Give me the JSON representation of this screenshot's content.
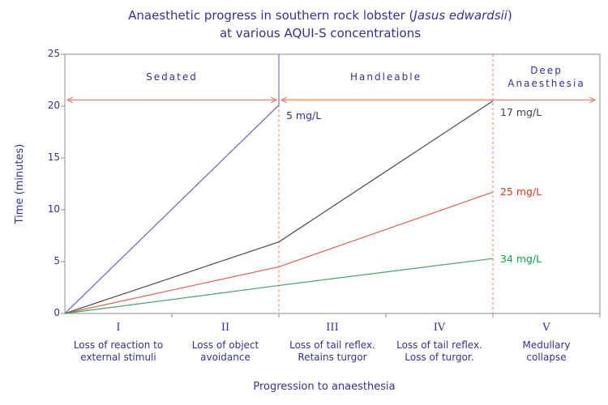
{
  "title": {
    "line1_prefix": "Anaesthetic progress in southern rock lobster (",
    "line1_italic": "Jasus edwardsii",
    "line1_suffix": ")",
    "line2": "at various AQUI-S concentrations"
  },
  "colors": {
    "text": "#32329a",
    "axis": "#8e8e8e",
    "arrow": "#ee7058",
    "arrow_highlight": "#f6ac92",
    "divider_dashed": "#f0745c",
    "divider_solid": "#5858b4"
  },
  "chart_data": {
    "type": "line",
    "title": "Anaesthetic progress in southern rock lobster (Jasus edwardsii) at various AQUI-S concentrations",
    "xlabel": "Progression to anaesthesia",
    "ylabel": "Time (minutes)",
    "ylim": [
      0,
      25
    ],
    "yticks": [
      0,
      5,
      10,
      15,
      20,
      25
    ],
    "grid": false,
    "legend_position": "inline-right-of-lines",
    "x_axis_note": "x positions are stage-boundary indices 0..5 (start of stage I to end of stage V)",
    "stages": [
      {
        "numeral": "I",
        "desc": [
          "Loss of reaction to",
          "external stimuli"
        ]
      },
      {
        "numeral": "II",
        "desc": [
          "Loss of object",
          "avoidance"
        ]
      },
      {
        "numeral": "III",
        "desc": [
          "Loss of tail reflex.",
          "Retains turgor"
        ]
      },
      {
        "numeral": "IV",
        "desc": [
          "Loss of tail reflex.",
          "Loss of turgor."
        ]
      },
      {
        "numeral": "V",
        "desc": [
          "Medullary",
          "collapse"
        ]
      }
    ],
    "regions": [
      {
        "label_lines": [
          "Sedated"
        ],
        "from": 0,
        "to": 2
      },
      {
        "label_lines": [
          "Handleable"
        ],
        "from": 2,
        "to": 4
      },
      {
        "label_lines": [
          "Deep",
          "Anaesthesia"
        ],
        "from": 4,
        "to": 5
      }
    ],
    "arrow_y_minutes": 20.6,
    "dividers": [
      {
        "at_boundary": 2,
        "style": "solid-above-arrow-dashed-below"
      },
      {
        "at_boundary": 4,
        "style": "dashed-full-height"
      }
    ],
    "series": [
      {
        "name": "5 mg/L",
        "color": "#6363bd",
        "label_color": "#32329a",
        "points": [
          [
            0,
            0
          ],
          [
            2,
            20.1
          ]
        ],
        "label_pos": {
          "stage": 2,
          "minutes": 19.1
        }
      },
      {
        "name": "17 mg/L",
        "color": "#4a4a4a",
        "label_color": "#454545",
        "points": [
          [
            0,
            0
          ],
          [
            2,
            6.9
          ],
          [
            4,
            20.5
          ]
        ],
        "label_pos": {
          "stage": 4,
          "minutes": 19.4
        }
      },
      {
        "name": "25 mg/L",
        "color": "#e5604a",
        "label_color": "#df3522",
        "points": [
          [
            0,
            0
          ],
          [
            2,
            4.5
          ],
          [
            4,
            11.7
          ]
        ],
        "label_pos": {
          "stage": 4,
          "minutes": 11.7
        }
      },
      {
        "name": "34 mg/L",
        "color": "#43a768",
        "label_color": "#0f9f4d",
        "points": [
          [
            0,
            0
          ],
          [
            2,
            2.7
          ],
          [
            4,
            5.3
          ]
        ],
        "label_pos": {
          "stage": 4,
          "minutes": 5.25
        }
      }
    ]
  }
}
